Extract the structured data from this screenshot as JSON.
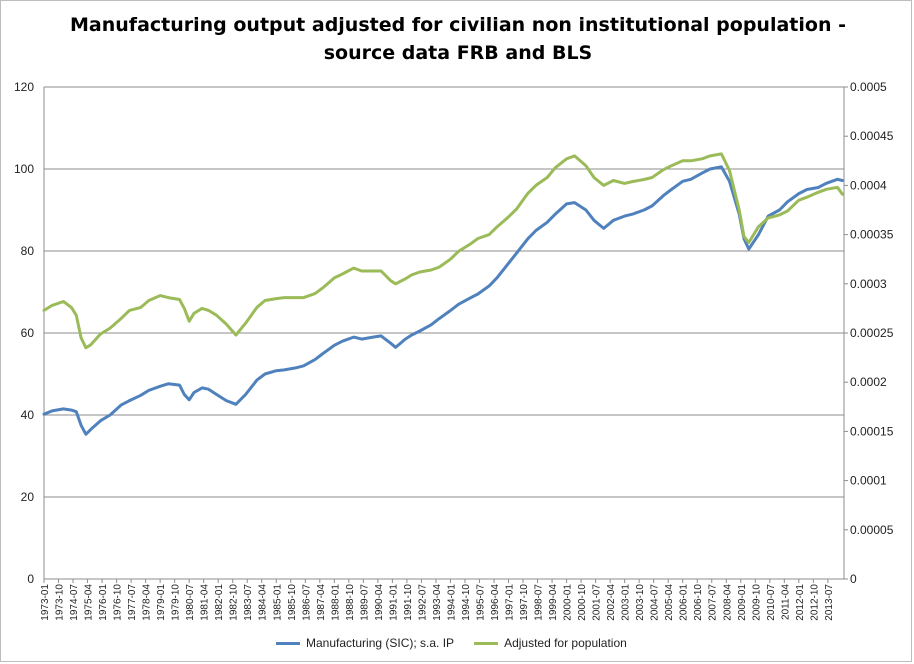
{
  "chart_data": {
    "type": "line",
    "title_lines": [
      "Manufacturing output adjusted for civilian non institutional population -",
      "source data FRB and BLS"
    ],
    "xlabel": "",
    "ylabel": "",
    "ylim": [
      0,
      120
    ],
    "y2lim": [
      0,
      0.0005
    ],
    "y_ticks": [
      "0",
      "20",
      "40",
      "60",
      "80",
      "100",
      "120"
    ],
    "y2_ticks": [
      "0",
      "0.00005",
      "0.0001",
      "0.00015",
      "0.0002",
      "0.00025",
      "0.0003",
      "0.00035",
      "0.0004",
      "0.00045",
      "0.0005"
    ],
    "x_ticks": [
      "1973-01",
      "1973-10",
      "1974-07",
      "1975-04",
      "1976-01",
      "1976-10",
      "1977-07",
      "1978-04",
      "1979-01",
      "1979-10",
      "1980-07",
      "1981-04",
      "1982-01",
      "1982-10",
      "1983-07",
      "1984-04",
      "1985-01",
      "1985-10",
      "1986-07",
      "1987-04",
      "1988-01",
      "1988-10",
      "1989-07",
      "1990-04",
      "1991-01",
      "1991-10",
      "1992-07",
      "1993-04",
      "1994-01",
      "1994-10",
      "1995-07",
      "1996-04",
      "1997-01",
      "1997-10",
      "1998-07",
      "1999-04",
      "2000-01",
      "2000-10",
      "2001-07",
      "2002-04",
      "2003-01",
      "2003-10",
      "2004-07",
      "2005-04",
      "2006-01",
      "2006-10",
      "2007-07",
      "2008-04",
      "2009-01",
      "2009-10",
      "2010-07",
      "2011-04",
      "2012-01",
      "2012-10",
      "2013-07"
    ],
    "grid": true,
    "legend_position": "bottom",
    "series": [
      {
        "name": "Manufacturing (SIC); s.a. IP",
        "axis": "left",
        "color": "#4f81bd",
        "x": [
          "1973-01",
          "1973-06",
          "1974-01",
          "1974-06",
          "1974-09",
          "1974-12",
          "1975-03",
          "1975-06",
          "1975-12",
          "1976-06",
          "1977-01",
          "1977-06",
          "1978-01",
          "1978-06",
          "1979-01",
          "1979-06",
          "1980-01",
          "1980-04",
          "1980-07",
          "1980-10",
          "1981-03",
          "1981-07",
          "1981-12",
          "1982-06",
          "1982-12",
          "1983-06",
          "1984-01",
          "1984-06",
          "1985-01",
          "1985-06",
          "1986-01",
          "1986-06",
          "1987-01",
          "1987-06",
          "1988-01",
          "1988-06",
          "1989-01",
          "1989-06",
          "1990-01",
          "1990-06",
          "1990-12",
          "1991-03",
          "1991-09",
          "1992-01",
          "1992-06",
          "1993-01",
          "1993-06",
          "1994-01",
          "1994-06",
          "1995-01",
          "1995-06",
          "1996-01",
          "1996-06",
          "1997-01",
          "1997-06",
          "1998-01",
          "1998-06",
          "1999-01",
          "1999-06",
          "2000-01",
          "2000-06",
          "2001-01",
          "2001-06",
          "2001-12",
          "2002-06",
          "2003-01",
          "2003-06",
          "2004-01",
          "2004-06",
          "2005-01",
          "2005-06",
          "2006-01",
          "2006-06",
          "2007-01",
          "2007-06",
          "2008-01",
          "2008-06",
          "2008-12",
          "2009-03",
          "2009-06",
          "2009-12",
          "2010-06",
          "2011-01",
          "2011-06",
          "2012-01",
          "2012-06",
          "2013-01",
          "2013-06",
          "2014-01",
          "2014-04"
        ],
        "y": [
          40.2,
          41.0,
          41.5,
          41.2,
          40.8,
          37.5,
          35.3,
          36.5,
          38.6,
          40.0,
          42.5,
          43.5,
          44.8,
          46.0,
          47.0,
          47.6,
          47.3,
          45.0,
          43.7,
          45.5,
          46.6,
          46.3,
          45.0,
          43.5,
          42.6,
          45.0,
          48.5,
          50.0,
          50.8,
          51.0,
          51.5,
          52.0,
          53.5,
          55.0,
          57.0,
          58.0,
          59.0,
          58.5,
          59.0,
          59.3,
          57.5,
          56.5,
          58.5,
          59.5,
          60.5,
          62.0,
          63.5,
          65.5,
          67.0,
          68.5,
          69.5,
          71.5,
          73.5,
          77.0,
          79.5,
          83.0,
          85.0,
          87.0,
          89.0,
          91.5,
          91.8,
          90.0,
          87.5,
          85.5,
          87.5,
          88.5,
          89.0,
          90.0,
          91.0,
          93.5,
          95.0,
          97.0,
          97.5,
          99.0,
          100.0,
          100.5,
          97.0,
          89.0,
          83.0,
          80.5,
          84.0,
          88.5,
          90.0,
          92.0,
          94.0,
          95.0,
          95.5,
          96.5,
          97.5,
          97.2
        ]
      },
      {
        "name": "Adjusted for population",
        "axis": "right",
        "color": "#9bbb59",
        "x": [
          "1973-01",
          "1973-06",
          "1974-01",
          "1974-06",
          "1974-09",
          "1974-12",
          "1975-03",
          "1975-06",
          "1975-12",
          "1976-06",
          "1977-01",
          "1977-06",
          "1978-01",
          "1978-06",
          "1979-01",
          "1979-06",
          "1980-01",
          "1980-04",
          "1980-07",
          "1980-10",
          "1981-03",
          "1981-07",
          "1981-12",
          "1982-06",
          "1982-12",
          "1983-06",
          "1984-01",
          "1984-06",
          "1985-01",
          "1985-06",
          "1986-01",
          "1986-06",
          "1987-01",
          "1987-06",
          "1988-01",
          "1988-06",
          "1989-01",
          "1989-06",
          "1990-01",
          "1990-06",
          "1990-12",
          "1991-03",
          "1991-09",
          "1992-01",
          "1992-06",
          "1993-01",
          "1993-06",
          "1994-01",
          "1994-06",
          "1995-01",
          "1995-06",
          "1996-01",
          "1996-06",
          "1997-01",
          "1997-06",
          "1998-01",
          "1998-06",
          "1999-01",
          "1999-06",
          "2000-01",
          "2000-06",
          "2001-01",
          "2001-06",
          "2001-12",
          "2002-06",
          "2003-01",
          "2003-06",
          "2004-01",
          "2004-06",
          "2005-01",
          "2005-06",
          "2006-01",
          "2006-06",
          "2007-01",
          "2007-06",
          "2008-01",
          "2008-06",
          "2008-12",
          "2009-03",
          "2009-06",
          "2009-12",
          "2010-06",
          "2011-01",
          "2011-06",
          "2012-01",
          "2012-06",
          "2013-01",
          "2013-06",
          "2014-01",
          "2014-04"
        ],
        "y": [
          0.000273,
          0.000278,
          0.000282,
          0.000276,
          0.000268,
          0.000245,
          0.000235,
          0.000238,
          0.000249,
          0.000255,
          0.000265,
          0.000273,
          0.000276,
          0.000283,
          0.000288,
          0.000286,
          0.000284,
          0.000275,
          0.000262,
          0.00027,
          0.000275,
          0.000273,
          0.000268,
          0.000259,
          0.000248,
          0.00026,
          0.000276,
          0.000283,
          0.000285,
          0.000286,
          0.000286,
          0.000286,
          0.00029,
          0.000296,
          0.000306,
          0.00031,
          0.000316,
          0.000313,
          0.000313,
          0.000313,
          0.000303,
          0.0003,
          0.000305,
          0.000309,
          0.000312,
          0.000314,
          0.000317,
          0.000325,
          0.000333,
          0.00034,
          0.000346,
          0.00035,
          0.000358,
          0.000368,
          0.000376,
          0.000392,
          0.0004,
          0.000408,
          0.000418,
          0.000427,
          0.00043,
          0.00042,
          0.000408,
          0.0004,
          0.000405,
          0.000402,
          0.000404,
          0.000406,
          0.000408,
          0.000416,
          0.00042,
          0.000425,
          0.000425,
          0.000427,
          0.00043,
          0.000432,
          0.000415,
          0.000375,
          0.000348,
          0.000342,
          0.000358,
          0.000367,
          0.00037,
          0.000374,
          0.000385,
          0.000388,
          0.000393,
          0.000396,
          0.000398,
          0.000391
        ]
      }
    ]
  }
}
